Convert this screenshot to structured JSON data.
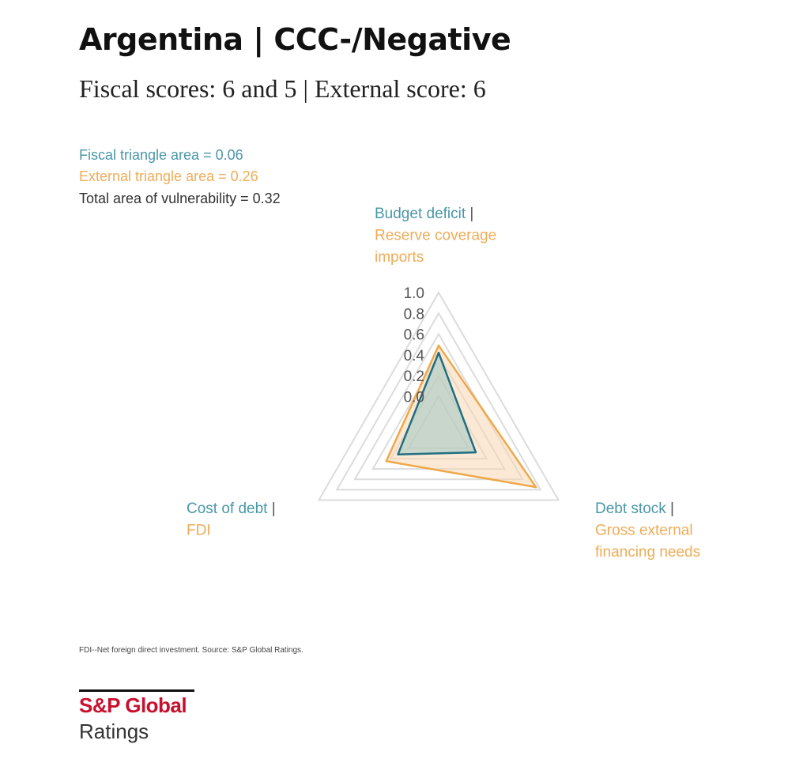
{
  "header": {
    "title": "Argentina | CCC-/Negative",
    "subtitle": "Fiscal scores: 6 and 5 | External score: 6"
  },
  "notes": {
    "fiscal_area": "Fiscal triangle area = 0.06",
    "external_area": "External triangle area = 0.26",
    "total_area": "Total area of vulnerability = 0.32"
  },
  "chart_data": {
    "type": "radar",
    "axes": [
      {
        "fiscal": "Budget deficit",
        "separator": " |",
        "external": [
          "Reserve coverage",
          "imports"
        ]
      },
      {
        "fiscal": "Debt stock",
        "separator": " |",
        "external": [
          "Gross external",
          "financing needs"
        ]
      },
      {
        "fiscal": "Cost of debt",
        "separator": " |",
        "external": [
          "FDI"
        ]
      }
    ],
    "ticks": [
      "0.0",
      "0.2",
      "0.4",
      "0.6",
      "0.8",
      "1.0"
    ],
    "range": [
      0,
      1
    ],
    "series": [
      {
        "values": [
          0.42,
          0.08,
          0.12
        ],
        "color": "#1f6f80",
        "fill": "#9ec7c4"
      },
      {
        "values": [
          0.49,
          0.75,
          0.25
        ],
        "color": "#efa84a",
        "fill": "#f7d7b4"
      }
    ],
    "grid_color": "#dcdcdc"
  },
  "footer": {
    "footnote": "FDI--Net foreign direct investment. Source: S&P Global Ratings.",
    "logo_top": "S&P Global",
    "logo_bottom": "Ratings"
  }
}
